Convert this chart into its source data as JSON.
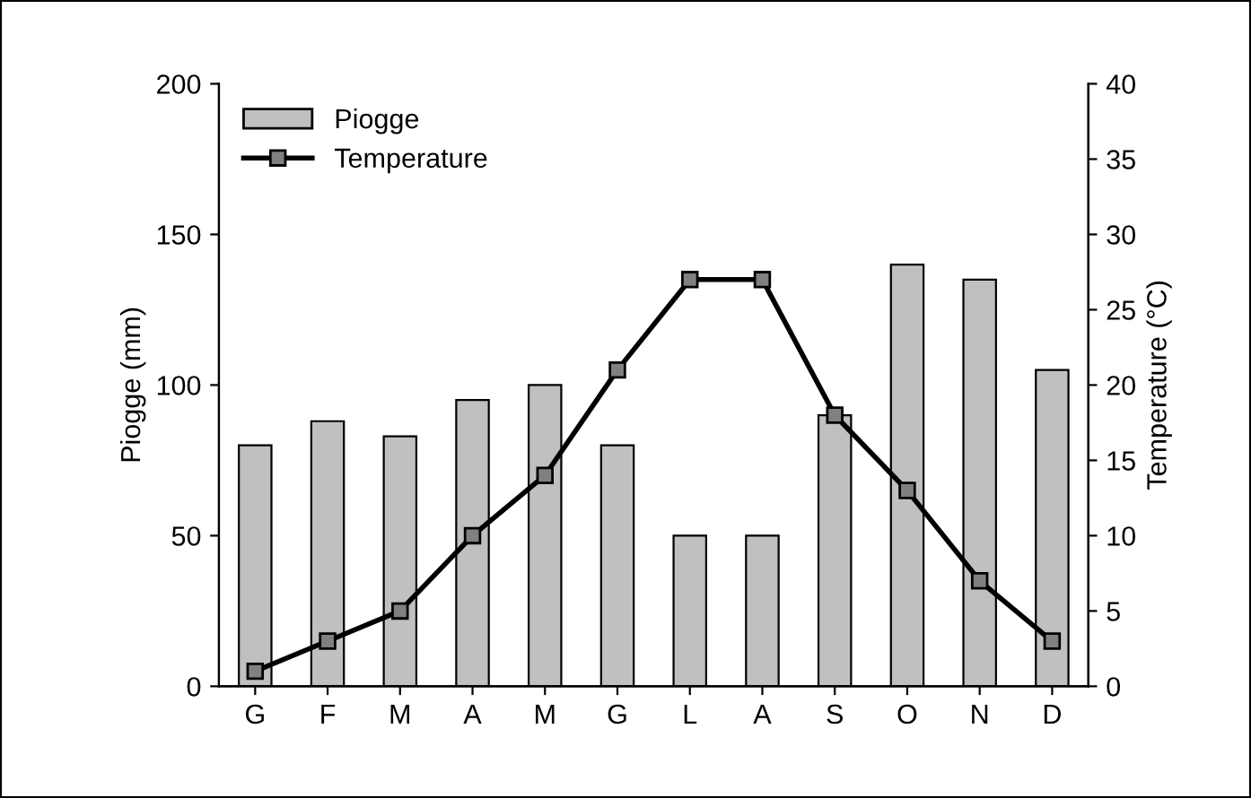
{
  "chart_data": {
    "type": "bar",
    "ylabel": "Piogge (mm)",
    "y2label": "Temperature (°C)",
    "categories": [
      "G",
      "F",
      "M",
      "A",
      "M",
      "G",
      "L",
      "A",
      "S",
      "O",
      "N",
      "D"
    ],
    "series": [
      {
        "name": "Piogge",
        "color": "#c0c0c0",
        "values": [
          80,
          88,
          83,
          95,
          100,
          80,
          50,
          50,
          90,
          140,
          135,
          105
        ]
      },
      {
        "name": "Temperature",
        "type": "line",
        "axis": "y2",
        "color": "#000000",
        "marker": "square",
        "values": [
          1,
          3,
          5,
          10,
          14,
          21,
          27,
          27,
          18,
          13,
          7,
          3
        ]
      }
    ],
    "ylim": [
      0,
      200
    ],
    "yticks": [
      0,
      50,
      100,
      150,
      200
    ],
    "y2lim": [
      0,
      40
    ],
    "y2ticks": [
      0,
      5,
      10,
      15,
      20,
      25,
      30,
      35,
      40
    ],
    "grid": false,
    "legend": "top left"
  }
}
